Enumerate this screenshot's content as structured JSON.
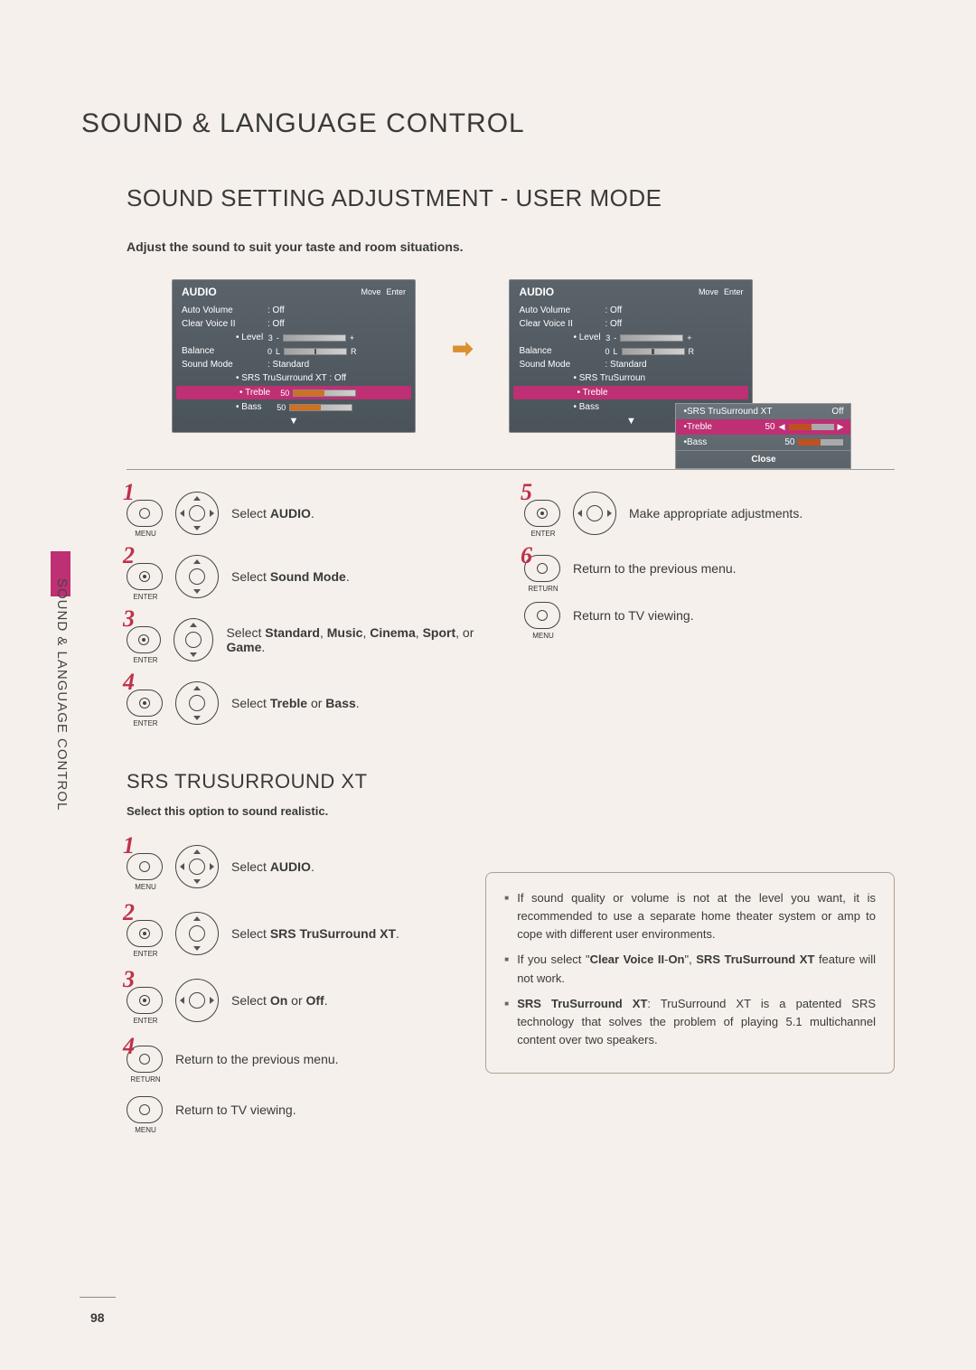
{
  "page": {
    "mainTitle": "SOUND & LANGUAGE CONTROL",
    "sectionTitle": "SOUND SETTING ADJUSTMENT - USER MODE",
    "subtitle": "Adjust the sound to suit your taste and room situations.",
    "sideLabel": "SOUND & LANGUAGE CONTROL",
    "pageNumber": "98"
  },
  "menuLeft": {
    "title": "AUDIO",
    "navHint1": "Move",
    "navHint2": "Enter",
    "rows": {
      "autoVolume": {
        "label": "Auto Volume",
        "value": ": Off"
      },
      "clearVoice": {
        "label": "Clear Voice II",
        "value": ": Off"
      },
      "level": {
        "label": "• Level",
        "value": "3"
      },
      "balance": {
        "label": "Balance",
        "value": "0"
      },
      "soundMode": {
        "label": "Sound Mode",
        "value": ": Standard"
      },
      "srs": {
        "label": "• SRS TruSurround XT : Off"
      },
      "treble": {
        "label": "• Treble",
        "value": "50"
      },
      "bass": {
        "label": "• Bass",
        "value": "50"
      }
    }
  },
  "menuRight": {
    "title": "AUDIO",
    "navHint1": "Move",
    "navHint2": "Enter",
    "rows": {
      "autoVolume": {
        "label": "Auto Volume",
        "value": ": Off"
      },
      "clearVoice": {
        "label": "Clear Voice II",
        "value": ": Off"
      },
      "level": {
        "label": "• Level",
        "value": "3"
      },
      "balance": {
        "label": "Balance",
        "value": "0"
      },
      "soundMode": {
        "label": "Sound Mode",
        "value": ": Standard"
      },
      "srs": {
        "label": "• SRS TruSurroun"
      },
      "treble": {
        "label": "• Treble"
      },
      "bass": {
        "label": "• Bass"
      }
    },
    "popout": {
      "srs": {
        "label": "•SRS TruSurround XT",
        "value": "Off"
      },
      "treble": {
        "label": "•Treble",
        "value": "50"
      },
      "bass": {
        "label": "•Bass",
        "value": "50"
      },
      "close": "Close"
    }
  },
  "steps1": {
    "s1": {
      "text": "Select ",
      "bold": "AUDIO",
      "suffix": "."
    },
    "s2": {
      "text": "Select ",
      "bold": "Sound Mode",
      "suffix": "."
    },
    "s3": {
      "text": "Select ",
      "bold": "Standard",
      "mid1": ", ",
      "bold2": "Music",
      "mid2": ", ",
      "bold3": "Cinema",
      "mid3": ", ",
      "bold4": "Sport",
      "mid4": ", or ",
      "bold5": "Game",
      "suffix": "."
    },
    "s4": {
      "text": "Select ",
      "bold": "Treble",
      "mid": " or ",
      "bold2": "Bass",
      "suffix": "."
    },
    "s5": {
      "text": "Make appropriate adjustments."
    },
    "s6": {
      "text": "Return to the previous menu."
    },
    "s7": {
      "text": "Return to TV viewing."
    }
  },
  "nums": {
    "n1": "1",
    "n2": "2",
    "n3": "3",
    "n4": "4",
    "n5": "5",
    "n6": "6"
  },
  "buttons": {
    "menu": "MENU",
    "enter": "ENTER",
    "return": "RETURN"
  },
  "srs": {
    "heading": "SRS TRUSURROUND XT",
    "desc": "Select this option to sound realistic.",
    "s1": {
      "text": "Select ",
      "bold": "AUDIO",
      "suffix": "."
    },
    "s2": {
      "text": "Select ",
      "bold": "SRS TruSurround XT",
      "suffix": "."
    },
    "s3": {
      "text": "Select ",
      "bold": "On",
      "mid": " or ",
      "bold2": "Off",
      "suffix": "."
    },
    "s4": {
      "text": "Return to the previous menu."
    },
    "s5": {
      "text": "Return to TV viewing."
    }
  },
  "info": {
    "li1": "If sound quality or volume is not at the level you want, it is recommended to use a separate home theater system or amp to cope with different user environments.",
    "li2a": "If you select \"",
    "li2b": "Clear Voice II",
    "li2c": "-",
    "li2d": "On",
    "li2e": "\", ",
    "li2f": "SRS TruSurround XT",
    "li2g": " feature will not work.",
    "li3a": "SRS TruSurround XT",
    "li3b": ": TruSurround XT is a patented SRS technology that solves the problem of playing 5.1 multichannel content over two speakers."
  },
  "colors": {
    "accentMagenta": "#be2f73",
    "stepNum": "#c0304a",
    "background": "#f5f0eb"
  }
}
